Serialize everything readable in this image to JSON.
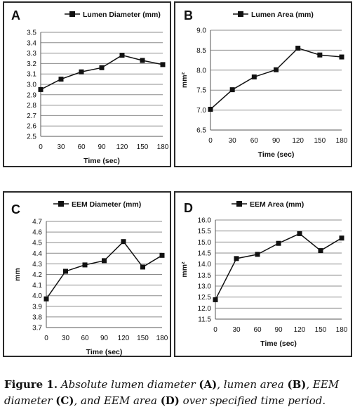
{
  "chart_data": [
    {
      "type": "line",
      "panel_letter": "A",
      "title": "",
      "legend": "Lumen Diameter (mm)",
      "xlabel": "Time (sec)",
      "ylabel": "",
      "x": [
        "0",
        "30",
        "60",
        "90",
        "120",
        "150",
        "180"
      ],
      "values": [
        2.95,
        3.05,
        3.12,
        3.16,
        3.28,
        3.23,
        3.19
      ],
      "ylim": [
        2.5,
        3.5
      ],
      "yticks": [
        "2.5",
        "2.6",
        "2.7",
        "2.8",
        "2.9",
        "3.0",
        "3.1",
        "3.2",
        "3.3",
        "3.4",
        "3.5"
      ],
      "grid": true,
      "legend_placement": "top"
    },
    {
      "type": "line",
      "panel_letter": "B",
      "title": "",
      "legend": "Lumen Area (mm)",
      "xlabel": "Time (sec)",
      "ylabel": "mm²",
      "x": [
        "0",
        "30",
        "60",
        "90",
        "120",
        "150",
        "180"
      ],
      "values": [
        7.02,
        7.51,
        7.83,
        8.01,
        8.55,
        8.38,
        8.33
      ],
      "ylim": [
        6.5,
        9.0
      ],
      "yticks": [
        "6.5",
        "7.0",
        "7.5",
        "8.0",
        "8.5",
        "9.0"
      ],
      "grid": true,
      "legend_placement": "top"
    },
    {
      "type": "line",
      "panel_letter": "C",
      "title": "",
      "legend": "EEM Diameter (mm)",
      "xlabel": "Time (sec)",
      "ylabel": "mm",
      "x": [
        "0",
        "30",
        "60",
        "90",
        "120",
        "150",
        "180"
      ],
      "values": [
        3.97,
        4.23,
        4.29,
        4.33,
        4.51,
        4.27,
        4.38
      ],
      "ylim": [
        3.7,
        4.7
      ],
      "yticks": [
        "3.7",
        "3.8",
        "3.9",
        "4.0",
        "4.1",
        "4.2",
        "4.3",
        "4.4",
        "4.5",
        "4.6",
        "4.7"
      ],
      "grid": true,
      "legend_placement": "top"
    },
    {
      "type": "line",
      "panel_letter": "D",
      "title": "",
      "legend": "EEM Area (mm)",
      "xlabel": "Time (sec)",
      "ylabel": "mm²",
      "x": [
        "0",
        "30",
        "60",
        "90",
        "120",
        "150",
        "180"
      ],
      "values": [
        12.38,
        14.25,
        14.44,
        14.94,
        15.38,
        14.61,
        15.18
      ],
      "ylim": [
        11.5,
        16.0
      ],
      "yticks": [
        "11.5",
        "12.0",
        "12.5",
        "13.0",
        "13.5",
        "14.0",
        "14.5",
        "15.0",
        "15.5",
        "16.0"
      ],
      "grid": true,
      "legend_placement": "top"
    }
  ],
  "caption": {
    "lead": "Figure 1.",
    "parts": [
      {
        "t": " Absolute lumen diameter ",
        "b": false
      },
      {
        "t": "(A)",
        "b": true
      },
      {
        "t": ", lumen area ",
        "b": false
      },
      {
        "t": "(B)",
        "b": true
      },
      {
        "t": ", EEM diameter ",
        "b": false
      },
      {
        "t": "(C)",
        "b": true
      },
      {
        "t": ", and EEM area ",
        "b": false
      },
      {
        "t": "(D)",
        "b": true
      },
      {
        "t": " over specified time period.",
        "b": false
      }
    ]
  },
  "colors": {
    "line": "#111111",
    "grid": "#8c8c8c",
    "frame": "#2a2a2a"
  }
}
